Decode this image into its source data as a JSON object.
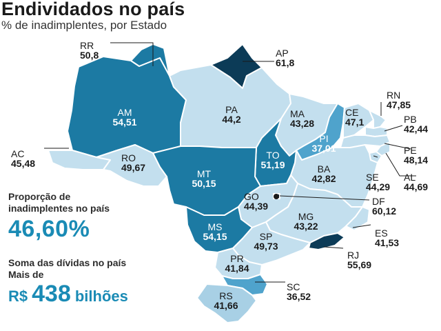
{
  "header": {
    "title": "Endividados no país",
    "subtitle": "% de inadimplentes, por Estado"
  },
  "colors": {
    "lightest": "#c3dfee",
    "light": "#a8d0e5",
    "medium": "#4fa3cc",
    "dark": "#1c7aa3",
    "darkest": "#0c3b57",
    "accent": "#1a8bb5"
  },
  "states": [
    {
      "code": "RR",
      "value": "50,8"
    },
    {
      "code": "AP",
      "value": "61,8"
    },
    {
      "code": "AM",
      "value": "54,51"
    },
    {
      "code": "PA",
      "value": "44,2"
    },
    {
      "code": "MA",
      "value": "43,28"
    },
    {
      "code": "CE",
      "value": "47,1"
    },
    {
      "code": "RN",
      "value": "47,85"
    },
    {
      "code": "PB",
      "value": "42,44"
    },
    {
      "code": "PE",
      "value": "48,14"
    },
    {
      "code": "AL",
      "value": "44,69"
    },
    {
      "code": "SE",
      "value": "44,29"
    },
    {
      "code": "PI",
      "value": "37,01"
    },
    {
      "code": "AC",
      "value": "45,48"
    },
    {
      "code": "RO",
      "value": "49,67"
    },
    {
      "code": "TO",
      "value": "51,19"
    },
    {
      "code": "BA",
      "value": "42,82"
    },
    {
      "code": "MT",
      "value": "50,15"
    },
    {
      "code": "GO",
      "value": "44,39"
    },
    {
      "code": "DF",
      "value": "60,12"
    },
    {
      "code": "MG",
      "value": "43,22"
    },
    {
      "code": "MS",
      "value": "54,15"
    },
    {
      "code": "ES",
      "value": "41,53"
    },
    {
      "code": "SP",
      "value": "49,73"
    },
    {
      "code": "RJ",
      "value": "55,69"
    },
    {
      "code": "PR",
      "value": "41,84"
    },
    {
      "code": "SC",
      "value": "36,52"
    },
    {
      "code": "RS",
      "value": "41,66"
    }
  ],
  "stats": {
    "proportion_label": "Proporção de inadimplentes no país",
    "proportion_value": "46,60%",
    "debt_label_line1": "Soma das dívidas no país",
    "debt_label_line2": "Mais de",
    "debt_currency": "R$",
    "debt_value": "438",
    "debt_unit": "bilhões"
  }
}
